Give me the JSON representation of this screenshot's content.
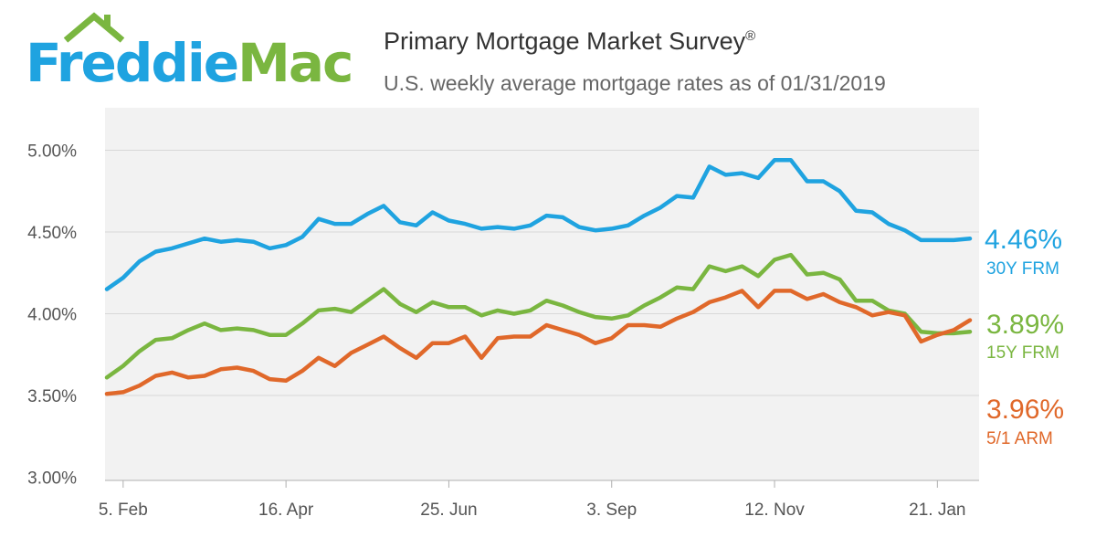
{
  "logo": {
    "text_part1": "Freddie",
    "text_part2": "Mac",
    "color_blue": "#1fa3e0",
    "color_green": "#7ab640"
  },
  "header": {
    "title": "Primary Mortgage Market Survey",
    "title_mark": "®",
    "subtitle": "U.S. weekly average mortgage rates as of 01/31/2019"
  },
  "chart_data": {
    "type": "line",
    "x_tick_labels": [
      "5. Feb",
      "16. Apr",
      "25. Jun",
      "3. Sep",
      "12. Nov",
      "21. Jan"
    ],
    "x_tick_index": [
      1,
      11,
      21,
      31,
      41,
      51
    ],
    "y_tick_labels": [
      "3.00%",
      "3.50%",
      "4.00%",
      "4.50%",
      "5.00%"
    ],
    "y_ticks": [
      3.0,
      3.5,
      4.0,
      4.5,
      5.0
    ],
    "ylim": [
      2.98,
      5.26
    ],
    "x_range": [
      0,
      53
    ],
    "grid": true,
    "series": [
      {
        "name": "30Y FRM",
        "end_label": "4.46%",
        "color": "#1fa3e0",
        "values": [
          4.15,
          4.22,
          4.32,
          4.38,
          4.4,
          4.43,
          4.46,
          4.44,
          4.45,
          4.44,
          4.4,
          4.42,
          4.47,
          4.58,
          4.55,
          4.55,
          4.61,
          4.66,
          4.56,
          4.54,
          4.62,
          4.57,
          4.55,
          4.52,
          4.53,
          4.52,
          4.54,
          4.6,
          4.59,
          4.53,
          4.51,
          4.52,
          4.54,
          4.6,
          4.65,
          4.72,
          4.71,
          4.9,
          4.85,
          4.86,
          4.83,
          4.94,
          4.94,
          4.81,
          4.81,
          4.75,
          4.63,
          4.62,
          4.55,
          4.51,
          4.45,
          4.45,
          4.45,
          4.46
        ]
      },
      {
        "name": "15Y FRM",
        "end_label": "3.89%",
        "color": "#7ab640",
        "values": [
          3.61,
          3.68,
          3.77,
          3.84,
          3.85,
          3.9,
          3.94,
          3.9,
          3.91,
          3.9,
          3.87,
          3.87,
          3.94,
          4.02,
          4.03,
          4.01,
          4.08,
          4.15,
          4.06,
          4.01,
          4.07,
          4.04,
          4.04,
          3.99,
          4.02,
          4.0,
          4.02,
          4.08,
          4.05,
          4.01,
          3.98,
          3.97,
          3.99,
          4.05,
          4.1,
          4.16,
          4.15,
          4.29,
          4.26,
          4.29,
          4.23,
          4.33,
          4.36,
          4.24,
          4.25,
          4.21,
          4.08,
          4.08,
          4.02,
          4.0,
          3.89,
          3.88,
          3.88,
          3.89
        ]
      },
      {
        "name": "5/1 ARM",
        "end_label": "3.96%",
        "color": "#e0682a",
        "values": [
          3.51,
          3.52,
          3.56,
          3.62,
          3.64,
          3.61,
          3.62,
          3.66,
          3.67,
          3.65,
          3.6,
          3.59,
          3.65,
          3.73,
          3.68,
          3.76,
          3.81,
          3.86,
          3.79,
          3.73,
          3.82,
          3.82,
          3.86,
          3.73,
          3.85,
          3.86,
          3.86,
          3.93,
          3.9,
          3.87,
          3.82,
          3.85,
          3.93,
          3.93,
          3.92,
          3.97,
          4.01,
          4.07,
          4.1,
          4.14,
          4.04,
          4.14,
          4.14,
          4.09,
          4.12,
          4.07,
          4.04,
          3.99,
          4.01,
          3.99,
          3.83,
          3.87,
          3.9,
          3.96
        ]
      }
    ]
  }
}
